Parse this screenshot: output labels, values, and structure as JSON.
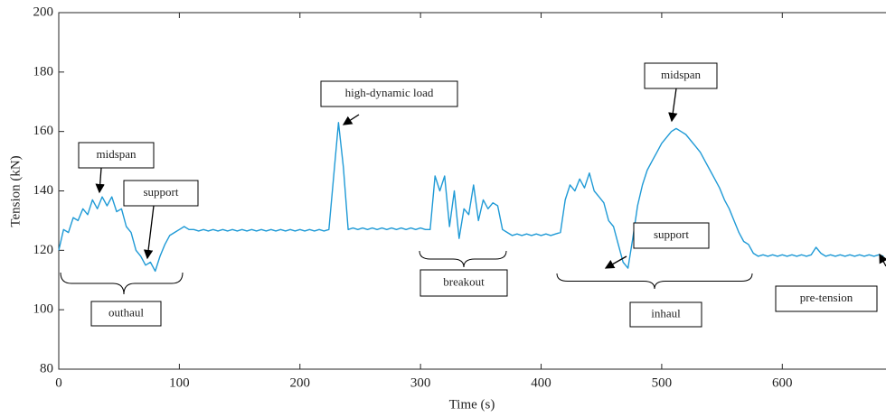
{
  "chart_data": {
    "type": "line",
    "xlabel": "Time (s)",
    "ylabel": "Tension (kN)",
    "xlim": [
      0,
      686
    ],
    "ylim": [
      80,
      200
    ],
    "xticks": [
      0,
      100,
      200,
      300,
      400,
      500,
      600
    ],
    "yticks": [
      80,
      100,
      120,
      140,
      160,
      180,
      200
    ],
    "grid": false,
    "series": [
      {
        "color": "#1f9ad6",
        "x": [
          0,
          4,
          8,
          12,
          16,
          20,
          24,
          28,
          32,
          36,
          40,
          44,
          48,
          52,
          56,
          60,
          64,
          68,
          72,
          76,
          80,
          84,
          88,
          92,
          96,
          100,
          104,
          108,
          112,
          116,
          120,
          124,
          128,
          132,
          136,
          140,
          144,
          148,
          152,
          156,
          160,
          164,
          168,
          172,
          176,
          180,
          184,
          188,
          192,
          196,
          200,
          204,
          208,
          212,
          216,
          220,
          224,
          228,
          232,
          236,
          240,
          244,
          248,
          252,
          256,
          260,
          264,
          268,
          272,
          276,
          280,
          284,
          288,
          292,
          296,
          300,
          304,
          308,
          312,
          316,
          320,
          324,
          328,
          332,
          336,
          340,
          344,
          348,
          352,
          356,
          360,
          364,
          368,
          372,
          376,
          380,
          384,
          388,
          392,
          396,
          400,
          404,
          408,
          412,
          416,
          420,
          424,
          428,
          432,
          436,
          440,
          444,
          448,
          452,
          456,
          460,
          464,
          468,
          472,
          476,
          480,
          484,
          488,
          492,
          496,
          500,
          504,
          508,
          512,
          516,
          520,
          524,
          528,
          532,
          536,
          540,
          544,
          548,
          552,
          556,
          560,
          564,
          568,
          572,
          576,
          580,
          584,
          588,
          592,
          596,
          600,
          604,
          608,
          612,
          616,
          620,
          624,
          628,
          632,
          636,
          640,
          644,
          648,
          652,
          656,
          660,
          664,
          668,
          672,
          676,
          680,
          684
        ],
        "values": [
          120,
          127,
          126,
          131,
          130,
          134,
          132,
          137,
          134,
          138,
          135,
          138,
          133,
          134,
          128,
          126,
          120,
          118,
          115,
          116,
          113,
          118,
          122,
          125,
          126,
          127,
          128,
          127,
          127,
          126.5,
          127,
          126.5,
          127,
          126.5,
          127,
          126.5,
          127,
          126.5,
          127,
          126.5,
          127,
          126.5,
          127,
          126.5,
          127,
          126.5,
          127,
          126.5,
          127,
          126.5,
          127,
          126.5,
          127,
          126.5,
          127,
          126.5,
          127,
          145,
          163,
          148,
          127,
          127.5,
          127,
          127.5,
          127,
          127.5,
          127,
          127.5,
          127,
          127.5,
          127,
          127.5,
          127,
          127.5,
          127,
          127.5,
          127,
          127,
          145,
          140,
          145,
          128,
          140,
          124,
          134,
          132,
          142,
          130,
          137,
          134,
          136,
          135,
          127,
          126,
          125,
          125.5,
          125,
          125.5,
          125,
          125.5,
          125,
          125.5,
          125,
          125.5,
          126,
          137,
          142,
          140,
          144,
          141,
          146,
          140,
          138,
          136,
          130,
          128,
          122,
          116,
          114,
          124,
          135,
          142,
          147,
          150,
          153,
          156,
          158,
          160,
          161,
          160,
          159,
          157,
          155,
          153,
          150,
          147,
          144,
          141,
          137,
          134,
          130,
          126,
          123,
          122,
          119,
          118,
          118.5,
          118,
          118.5,
          118,
          118.5,
          118,
          118.5,
          118,
          118.5,
          118,
          118.5,
          121,
          119,
          118,
          118.5,
          118,
          118.5,
          118,
          118.5,
          118,
          118.5,
          118,
          118.5,
          118,
          118.5,
          118
        ]
      }
    ],
    "annotations": [
      "midspan",
      "support",
      "outhaul",
      "high-dynamic load",
      "breakout",
      "midspan",
      "support",
      "inhaul",
      "pre-tension"
    ]
  }
}
